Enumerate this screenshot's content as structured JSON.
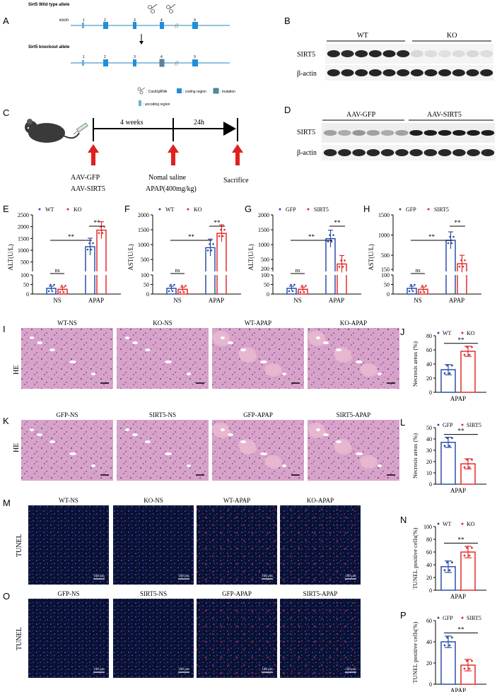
{
  "panel_letters": {
    "A": "A",
    "B": "B",
    "C": "C",
    "D": "D",
    "E": "E",
    "F": "F",
    "G": "G",
    "H": "H",
    "I": "I",
    "J": "J",
    "K": "K",
    "L": "L",
    "M": "M",
    "N": "N",
    "O": "O",
    "P": "P"
  },
  "panelA": {
    "wt_title": "Sirt5 Wild type allele",
    "exon_label": "exon",
    "exons_wt": [
      "1",
      "2",
      "3",
      "4",
      "9"
    ],
    "ko_title": "Sirt5 knockout allele",
    "exons_ko": [
      "1",
      "2",
      "3",
      "4",
      "9"
    ],
    "legend": {
      "cas9": ": Cas9/gRNA",
      "coding": ": coding region",
      "mutation": ": mutation",
      "uncoding": ": uncoding region"
    },
    "colors": {
      "line": "#6baed6",
      "coding": "#1f8fd6",
      "mutation": "#7a7a7a"
    }
  },
  "panelB": {
    "groups": [
      "WT",
      "KO"
    ],
    "rows": [
      "SIRT5",
      "β-actin"
    ]
  },
  "panelC": {
    "step1": "4 weeks",
    "step2": "24h",
    "labels1": [
      "AAV-GFP",
      "AAV-SIRT5"
    ],
    "labels2": [
      "Nomal saline",
      "APAP(400mg/kg)"
    ],
    "label3": "Sacrifice"
  },
  "panelD": {
    "groups": [
      "AAV-GFP",
      "AAV-SIRT5"
    ],
    "rows": [
      "SIRT5",
      "β-actin"
    ]
  },
  "panelI": {
    "row_label": "HE",
    "images": [
      "WT-NS",
      "KO-NS",
      "WT-APAP",
      "KO-APAP"
    ],
    "scale": "100 μm"
  },
  "panelK": {
    "row_label": "HE",
    "images": [
      "GFP-NS",
      "SIRT5-NS",
      "GFP-APAP",
      "SIRT5-APAP"
    ],
    "scale": "100 μm"
  },
  "panelM": {
    "row_label": "TUNEL",
    "images": [
      "WT-NS",
      "KO-NS",
      "WT-APAP",
      "KO-APAP"
    ],
    "scale": "100 μm"
  },
  "panelO": {
    "row_label": "TUNEL",
    "images": [
      "GFP-NS",
      "SIRT5-NS",
      "GFP-APAP",
      "SIRT5-APAP"
    ],
    "scale": "100 μm"
  },
  "chart_data": [
    {
      "panel": "E",
      "type": "bar",
      "ylabel": "ALT(U/L)",
      "categories": [
        "NS",
        "APAP"
      ],
      "series": [
        {
          "name": "WT",
          "values": [
            30,
            1150
          ],
          "color": "#2b4fa8"
        },
        {
          "name": "KO",
          "values": [
            25,
            1850
          ],
          "color": "#e32b2b"
        }
      ],
      "yticks_upper": [
        500,
        1000,
        1500,
        2000,
        2500
      ],
      "yticks_lower": [
        0,
        50,
        100
      ],
      "sig": [
        "ns",
        "**",
        "**"
      ]
    },
    {
      "panel": "F",
      "type": "bar",
      "ylabel": "AST(U/L)",
      "categories": [
        "NS",
        "APAP"
      ],
      "series": [
        {
          "name": "WT",
          "values": [
            30,
            900
          ],
          "color": "#2b4fa8"
        },
        {
          "name": "KO",
          "values": [
            25,
            1380
          ],
          "color": "#e32b2b"
        }
      ],
      "yticks_upper": [
        500,
        1000,
        1500,
        2000
      ],
      "yticks_lower": [
        0,
        50,
        100
      ],
      "sig": [
        "ns",
        "**",
        "**"
      ]
    },
    {
      "panel": "G",
      "type": "bar",
      "ylabel": "ALT(U/L)",
      "categories": [
        "NS",
        "APAP"
      ],
      "series": [
        {
          "name": "GFP",
          "values": [
            30,
            1200
          ],
          "color": "#2b4fa8"
        },
        {
          "name": "SIRT5",
          "values": [
            25,
            350
          ],
          "color": "#e32b2b"
        }
      ],
      "yticks_upper": [
        200,
        500,
        1000,
        1500,
        2000
      ],
      "yticks_lower": [
        0,
        50,
        100
      ],
      "sig": [
        "ns",
        "**",
        "**"
      ]
    },
    {
      "panel": "H",
      "type": "bar",
      "ylabel": "AST(U/L)",
      "categories": [
        "NS",
        "APAP"
      ],
      "series": [
        {
          "name": "GFP",
          "values": [
            30,
            870
          ],
          "color": "#2b4fa8"
        },
        {
          "name": "SIRT5",
          "values": [
            25,
            290
          ],
          "color": "#e32b2b"
        }
      ],
      "yticks_upper": [
        150,
        500,
        1000,
        1500
      ],
      "yticks_lower": [
        0,
        50,
        100
      ],
      "sig": [
        "ns",
        "**",
        "**"
      ]
    },
    {
      "panel": "J",
      "type": "bar",
      "ylabel": "Necrosis areas (%)",
      "xlabel": "APAP",
      "series": [
        {
          "name": "WT",
          "values": [
            32
          ],
          "color": "#2b4fa8"
        },
        {
          "name": "KO",
          "values": [
            58
          ],
          "color": "#e32b2b"
        }
      ],
      "ylim": [
        0,
        80
      ],
      "yticks": [
        0,
        20,
        40,
        60,
        80
      ],
      "sig": [
        "**"
      ]
    },
    {
      "panel": "L",
      "type": "bar",
      "ylabel": "Necrosis areas (%)",
      "xlabel": "APAP",
      "series": [
        {
          "name": "GFP",
          "values": [
            37
          ],
          "color": "#2b4fa8"
        },
        {
          "name": "SIRT5",
          "values": [
            18
          ],
          "color": "#e32b2b"
        }
      ],
      "ylim": [
        0,
        50
      ],
      "yticks": [
        0,
        10,
        20,
        30,
        40,
        50
      ],
      "sig": [
        "**"
      ]
    },
    {
      "panel": "N",
      "type": "bar",
      "ylabel": "TUNEL positive cells(%)",
      "xlabel": "APAP",
      "series": [
        {
          "name": "WT",
          "values": [
            37
          ],
          "color": "#2b4fa8"
        },
        {
          "name": "KO",
          "values": [
            60
          ],
          "color": "#e32b2b"
        }
      ],
      "ylim": [
        0,
        100
      ],
      "yticks": [
        0,
        20,
        40,
        60,
        80,
        100
      ],
      "sig": [
        "**"
      ]
    },
    {
      "panel": "P",
      "type": "bar",
      "ylabel": "TUNEL positive cells(%)",
      "xlabel": "APAP",
      "series": [
        {
          "name": "GFP",
          "values": [
            40
          ],
          "color": "#2b4fa8"
        },
        {
          "name": "SIRT5",
          "values": [
            18
          ],
          "color": "#e32b2b"
        }
      ],
      "ylim": [
        0,
        60
      ],
      "yticks": [
        0,
        20,
        40,
        60
      ],
      "sig": [
        "**"
      ]
    }
  ]
}
